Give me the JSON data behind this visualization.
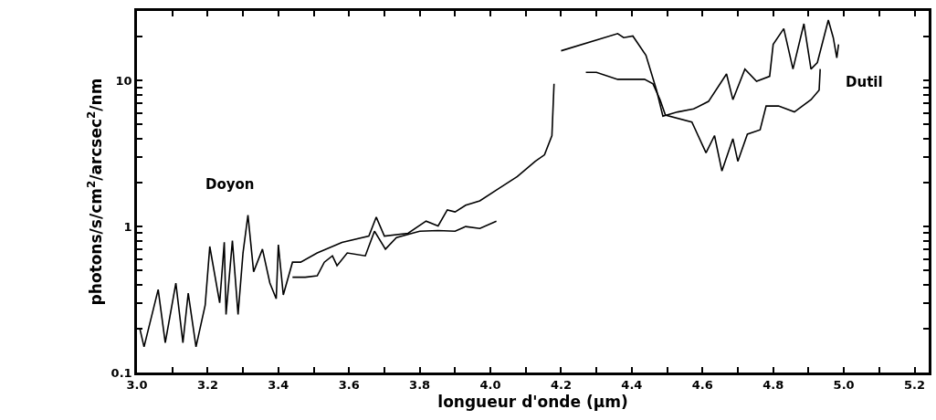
{
  "chart_data": {
    "type": "line",
    "xlabel": "longueur d'onde (µm)",
    "ylabel": "photons/s/cm$^{2}$/arcsec$^{2}$/nm",
    "log": "y",
    "grid": false,
    "legend": false,
    "marker": "none",
    "line_style": "solid",
    "xlim": [
      3.0,
      5.24
    ],
    "ylim": [
      0.1,
      30
    ],
    "xticks": [
      {
        "value": 3.0,
        "label": "3.0"
      },
      {
        "value": 3.1,
        "label": null
      },
      {
        "value": 3.2,
        "label": "3.2"
      },
      {
        "value": 3.3,
        "label": null
      },
      {
        "value": 3.4,
        "label": "3.4"
      },
      {
        "value": 3.5,
        "label": null
      },
      {
        "value": 3.6,
        "label": "3.6"
      },
      {
        "value": 3.7,
        "label": null
      },
      {
        "value": 3.8,
        "label": "3.8"
      },
      {
        "value": 3.9,
        "label": null
      },
      {
        "value": 4.0,
        "label": "4.0"
      },
      {
        "value": 4.1,
        "label": null
      },
      {
        "value": 4.2,
        "label": "4.2"
      },
      {
        "value": 4.3,
        "label": null
      },
      {
        "value": 4.4,
        "label": "4.4"
      },
      {
        "value": 4.5,
        "label": null
      },
      {
        "value": 4.6,
        "label": "4.6"
      },
      {
        "value": 4.7,
        "label": null
      },
      {
        "value": 4.8,
        "label": "4.8"
      },
      {
        "value": 4.9,
        "label": null
      },
      {
        "value": 5.0,
        "label": "5.0"
      },
      {
        "value": 5.1,
        "label": null
      },
      {
        "value": 5.2,
        "label": "5.2"
      }
    ],
    "yticks": [
      0.1,
      {
        "value": 0.2,
        "label": null
      },
      {
        "value": 0.3,
        "label": null
      },
      {
        "value": 0.4,
        "label": null
      },
      {
        "value": 0.5,
        "label": null
      },
      {
        "value": 0.6,
        "label": null
      },
      {
        "value": 0.7,
        "label": null
      },
      {
        "value": 0.8,
        "label": null
      },
      {
        "value": 0.9,
        "label": null
      },
      1,
      {
        "value": 2,
        "label": null
      },
      {
        "value": 3,
        "label": null
      },
      {
        "value": 4,
        "label": null
      },
      {
        "value": 5,
        "label": null
      },
      {
        "value": 6,
        "label": null
      },
      {
        "value": 7,
        "label": null
      },
      {
        "value": 8,
        "label": null
      },
      {
        "value": 9,
        "label": null
      },
      10,
      {
        "value": 20,
        "label": null
      }
    ],
    "series": [
      {
        "name": "Doyon",
        "color": "#000000",
        "x": [
          3.008,
          3.02,
          3.06,
          3.08,
          3.11,
          3.13,
          3.145,
          3.167,
          3.193,
          3.206,
          3.234,
          3.247,
          3.252,
          3.27,
          3.286,
          3.3,
          3.314,
          3.33,
          3.355,
          3.376,
          3.394,
          3.4,
          3.414,
          3.44,
          3.463,
          3.51,
          3.58,
          3.656,
          3.677,
          3.7,
          3.767,
          3.818,
          3.852,
          3.878,
          3.9,
          3.93,
          3.97,
          4.02,
          4.076,
          4.127,
          4.153,
          4.174,
          4.18
        ],
        "values": [
          0.2,
          0.15,
          0.37,
          0.16,
          0.41,
          0.16,
          0.35,
          0.15,
          0.29,
          0.73,
          0.3,
          0.78,
          0.25,
          0.8,
          0.25,
          0.66,
          1.2,
          0.49,
          0.7,
          0.41,
          0.32,
          0.75,
          0.34,
          0.57,
          0.57,
          0.66,
          0.78,
          0.86,
          1.16,
          0.86,
          0.9,
          1.09,
          1.01,
          1.3,
          1.26,
          1.4,
          1.5,
          1.8,
          2.2,
          2.8,
          3.1,
          4.2,
          9.5
        ]
      },
      {
        "color": "#000000",
        "x": [
          3.44,
          3.476,
          3.51,
          3.53,
          3.553,
          3.566,
          3.595,
          3.646,
          3.672,
          3.703,
          3.734,
          3.8,
          3.852,
          3.9,
          3.93,
          3.97,
          4.017
        ],
        "values": [
          0.45,
          0.45,
          0.46,
          0.57,
          0.63,
          0.54,
          0.66,
          0.63,
          0.93,
          0.7,
          0.84,
          0.93,
          0.94,
          0.93,
          1.0,
          0.97,
          1.09
        ]
      },
      {
        "name": "Dutil",
        "color": "#000000",
        "x": [
          4.2,
          4.36,
          4.377,
          4.403,
          4.44,
          4.47,
          4.488,
          4.53,
          4.575,
          4.617,
          4.668,
          4.686,
          4.72,
          4.753,
          4.79,
          4.8,
          4.83,
          4.856,
          4.887,
          4.907,
          4.925,
          4.956,
          4.97,
          4.98,
          4.985
        ],
        "values": [
          16,
          21,
          19.7,
          20.2,
          14.9,
          8.6,
          5.7,
          6.1,
          6.4,
          7.2,
          11.1,
          7.4,
          12,
          9.9,
          10.7,
          17.7,
          22.7,
          12,
          24.5,
          12,
          13.3,
          26,
          19.7,
          14.3,
          17.7
        ]
      },
      {
        "color": "#000000",
        "x": [
          4.27,
          4.3,
          4.36,
          4.385,
          4.436,
          4.46,
          4.48,
          4.495,
          4.57,
          4.61,
          4.634,
          4.655,
          4.686,
          4.7,
          4.727,
          4.763,
          4.78,
          4.815,
          4.86,
          4.907,
          4.93,
          4.933
        ],
        "values": [
          11.4,
          11.4,
          10.2,
          10.2,
          10.2,
          9.5,
          7.4,
          5.8,
          5.2,
          3.2,
          4.2,
          2.4,
          4.0,
          2.8,
          4.3,
          4.6,
          6.7,
          6.7,
          6.1,
          7.4,
          8.6,
          12
        ]
      }
    ]
  }
}
